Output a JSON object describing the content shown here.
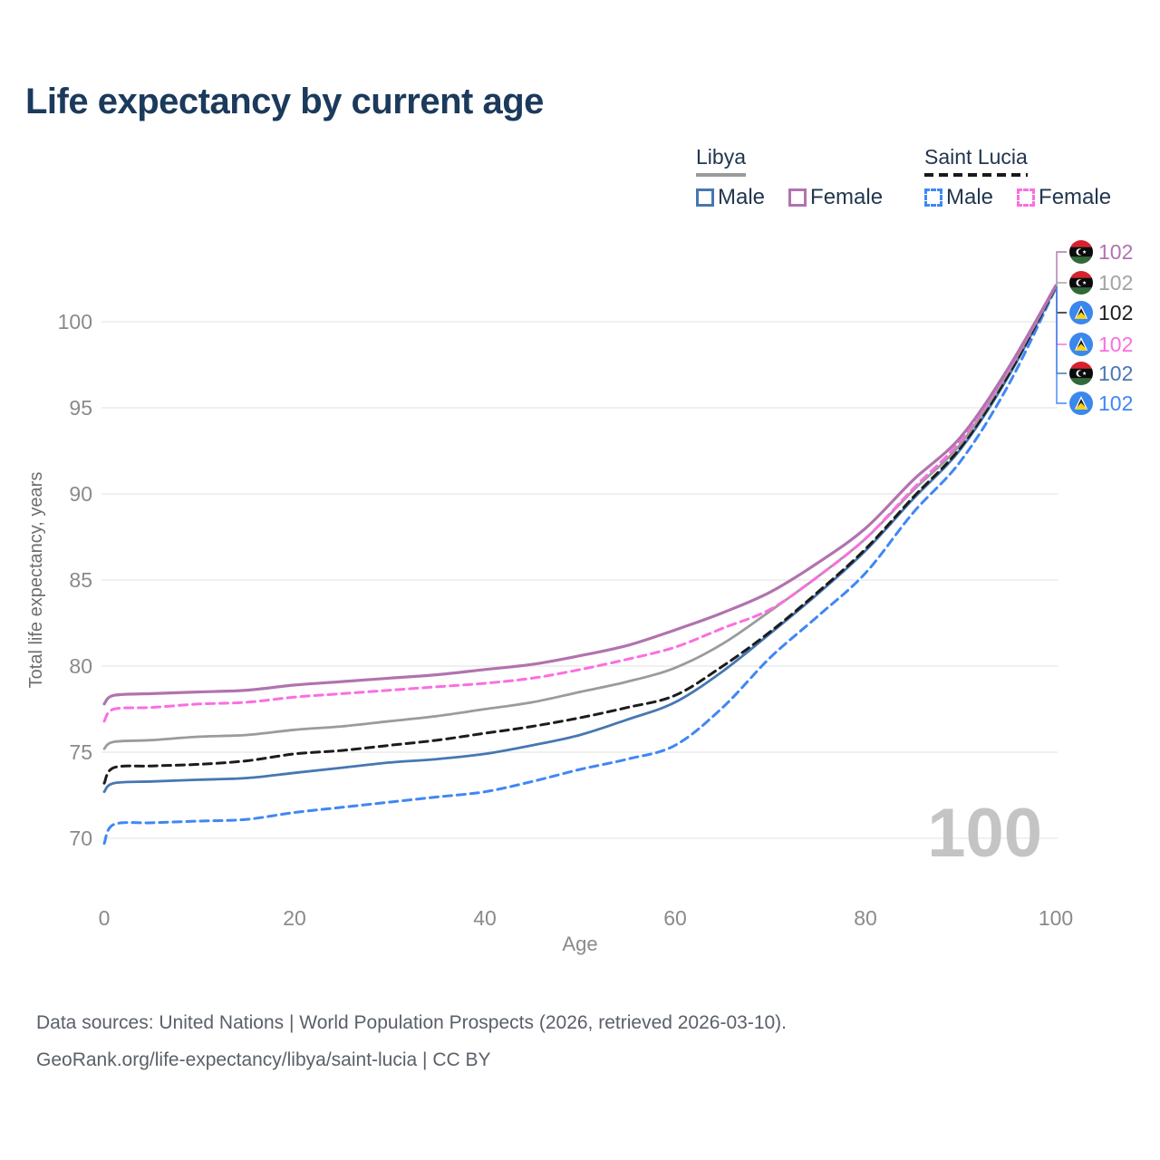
{
  "title": "Life expectancy by current age",
  "legend": {
    "groups": [
      {
        "country": "Libya",
        "line_style": "solid",
        "underline_color": "#9a9a9a",
        "items": [
          {
            "label": "Male",
            "color": "#4677b2",
            "dashed": false
          },
          {
            "label": "Female",
            "color": "#b173ae",
            "dashed": false
          }
        ]
      },
      {
        "country": "Saint Lucia",
        "line_style": "dashed",
        "underline_color": "#1a1a1a",
        "items": [
          {
            "label": "Male",
            "color": "#3f87f5",
            "dashed": true
          },
          {
            "label": "Female",
            "color": "#fb6ee0",
            "dashed": true
          }
        ]
      }
    ]
  },
  "chart_data": {
    "type": "line",
    "title": "Life expectancy by current age",
    "xlabel": "Age",
    "ylabel": "Total life expectancy, years",
    "xticks": [
      0,
      20,
      40,
      60,
      80,
      100
    ],
    "yticks": [
      70,
      75,
      80,
      85,
      90,
      95,
      100
    ],
    "xlim": [
      0,
      100
    ],
    "ylim": [
      69.5,
      102.5
    ],
    "grid": "horizontal",
    "legend_position": "top-right",
    "watermark": "100",
    "x": [
      0,
      1,
      5,
      10,
      15,
      20,
      25,
      30,
      35,
      40,
      45,
      50,
      55,
      60,
      65,
      70,
      75,
      80,
      85,
      90,
      95,
      100
    ],
    "series": [
      {
        "id": "saint-lucia-male",
        "name": "Saint Lucia Male",
        "country": "Saint Lucia",
        "sex": "Male",
        "color": "#3f87f5",
        "dashed": true,
        "width": 3,
        "values": [
          69.7,
          70.8,
          70.9,
          71.0,
          71.1,
          71.5,
          71.8,
          72.1,
          72.4,
          72.7,
          73.3,
          74.0,
          74.6,
          75.4,
          77.6,
          80.5,
          82.9,
          85.4,
          88.9,
          91.9,
          96.3,
          101.95
        ]
      },
      {
        "id": "libya-male",
        "name": "Libya Male",
        "country": "Libya",
        "sex": "Male",
        "color": "#4677b2",
        "dashed": false,
        "width": 2.8,
        "values": [
          72.7,
          73.2,
          73.3,
          73.4,
          73.5,
          73.8,
          74.1,
          74.4,
          74.6,
          74.9,
          75.4,
          76.0,
          76.9,
          77.9,
          79.7,
          81.9,
          84.2,
          86.7,
          89.7,
          92.6,
          96.8,
          102.0
        ]
      },
      {
        "id": "saint-lucia-total",
        "name": "Saint Lucia",
        "country": "Saint Lucia",
        "sex": "Both",
        "color": "#1c1c1c",
        "dashed": true,
        "width": 3,
        "values": [
          73.2,
          74.1,
          74.2,
          74.3,
          74.5,
          74.9,
          75.1,
          75.4,
          75.7,
          76.1,
          76.5,
          77.0,
          77.6,
          78.3,
          80.0,
          82.0,
          84.3,
          86.8,
          89.8,
          92.7,
          96.9,
          102.02
        ]
      },
      {
        "id": "libya-total",
        "name": "Libya",
        "country": "Libya",
        "sex": "Both",
        "color": "#9b9b9b",
        "dashed": false,
        "width": 2.8,
        "values": [
          75.2,
          75.6,
          75.7,
          75.9,
          76.0,
          76.3,
          76.5,
          76.8,
          77.1,
          77.5,
          77.9,
          78.5,
          79.1,
          79.9,
          81.3,
          83.2,
          85.2,
          87.4,
          90.2,
          92.9,
          97.1,
          102.06
        ]
      },
      {
        "id": "saint-lucia-female",
        "name": "Saint Lucia Female",
        "country": "Saint Lucia",
        "sex": "Female",
        "color": "#fb6ee0",
        "dashed": true,
        "width": 3,
        "values": [
          76.8,
          77.5,
          77.6,
          77.8,
          77.9,
          78.2,
          78.4,
          78.6,
          78.8,
          79.0,
          79.3,
          79.8,
          80.4,
          81.1,
          82.2,
          83.3,
          85.2,
          87.4,
          90.3,
          93.1,
          97.2,
          102.08
        ]
      },
      {
        "id": "libya-female",
        "name": "Libya Female",
        "country": "Libya",
        "sex": "Female",
        "color": "#b173ae",
        "dashed": false,
        "width": 3.2,
        "values": [
          77.8,
          78.3,
          78.4,
          78.5,
          78.6,
          78.9,
          79.1,
          79.3,
          79.5,
          79.8,
          80.1,
          80.6,
          81.2,
          82.1,
          83.1,
          84.3,
          86.0,
          88.0,
          90.8,
          93.3,
          97.3,
          102.1
        ]
      }
    ],
    "end_labels": [
      {
        "series": "libya-female",
        "flag": "libya",
        "value": "102",
        "color": "#b173ae"
      },
      {
        "series": "libya-total",
        "flag": "libya",
        "value": "102",
        "color": "#a3a3a3"
      },
      {
        "series": "saint-lucia-total",
        "flag": "saint-lucia",
        "value": "102",
        "color": "#1c1c1c"
      },
      {
        "series": "saint-lucia-female",
        "flag": "saint-lucia",
        "value": "102",
        "color": "#fb6ee0"
      },
      {
        "series": "libya-male",
        "flag": "libya",
        "value": "102",
        "color": "#4677b2"
      },
      {
        "series": "saint-lucia-male",
        "flag": "saint-lucia",
        "value": "102",
        "color": "#3f87f5"
      }
    ]
  },
  "footer": {
    "line1": "Data sources: United Nations | World Population Prospects (2026, retrieved 2026-03-10).",
    "line2": "GeoRank.org/life-expectancy/libya/saint-lucia | CC BY"
  }
}
